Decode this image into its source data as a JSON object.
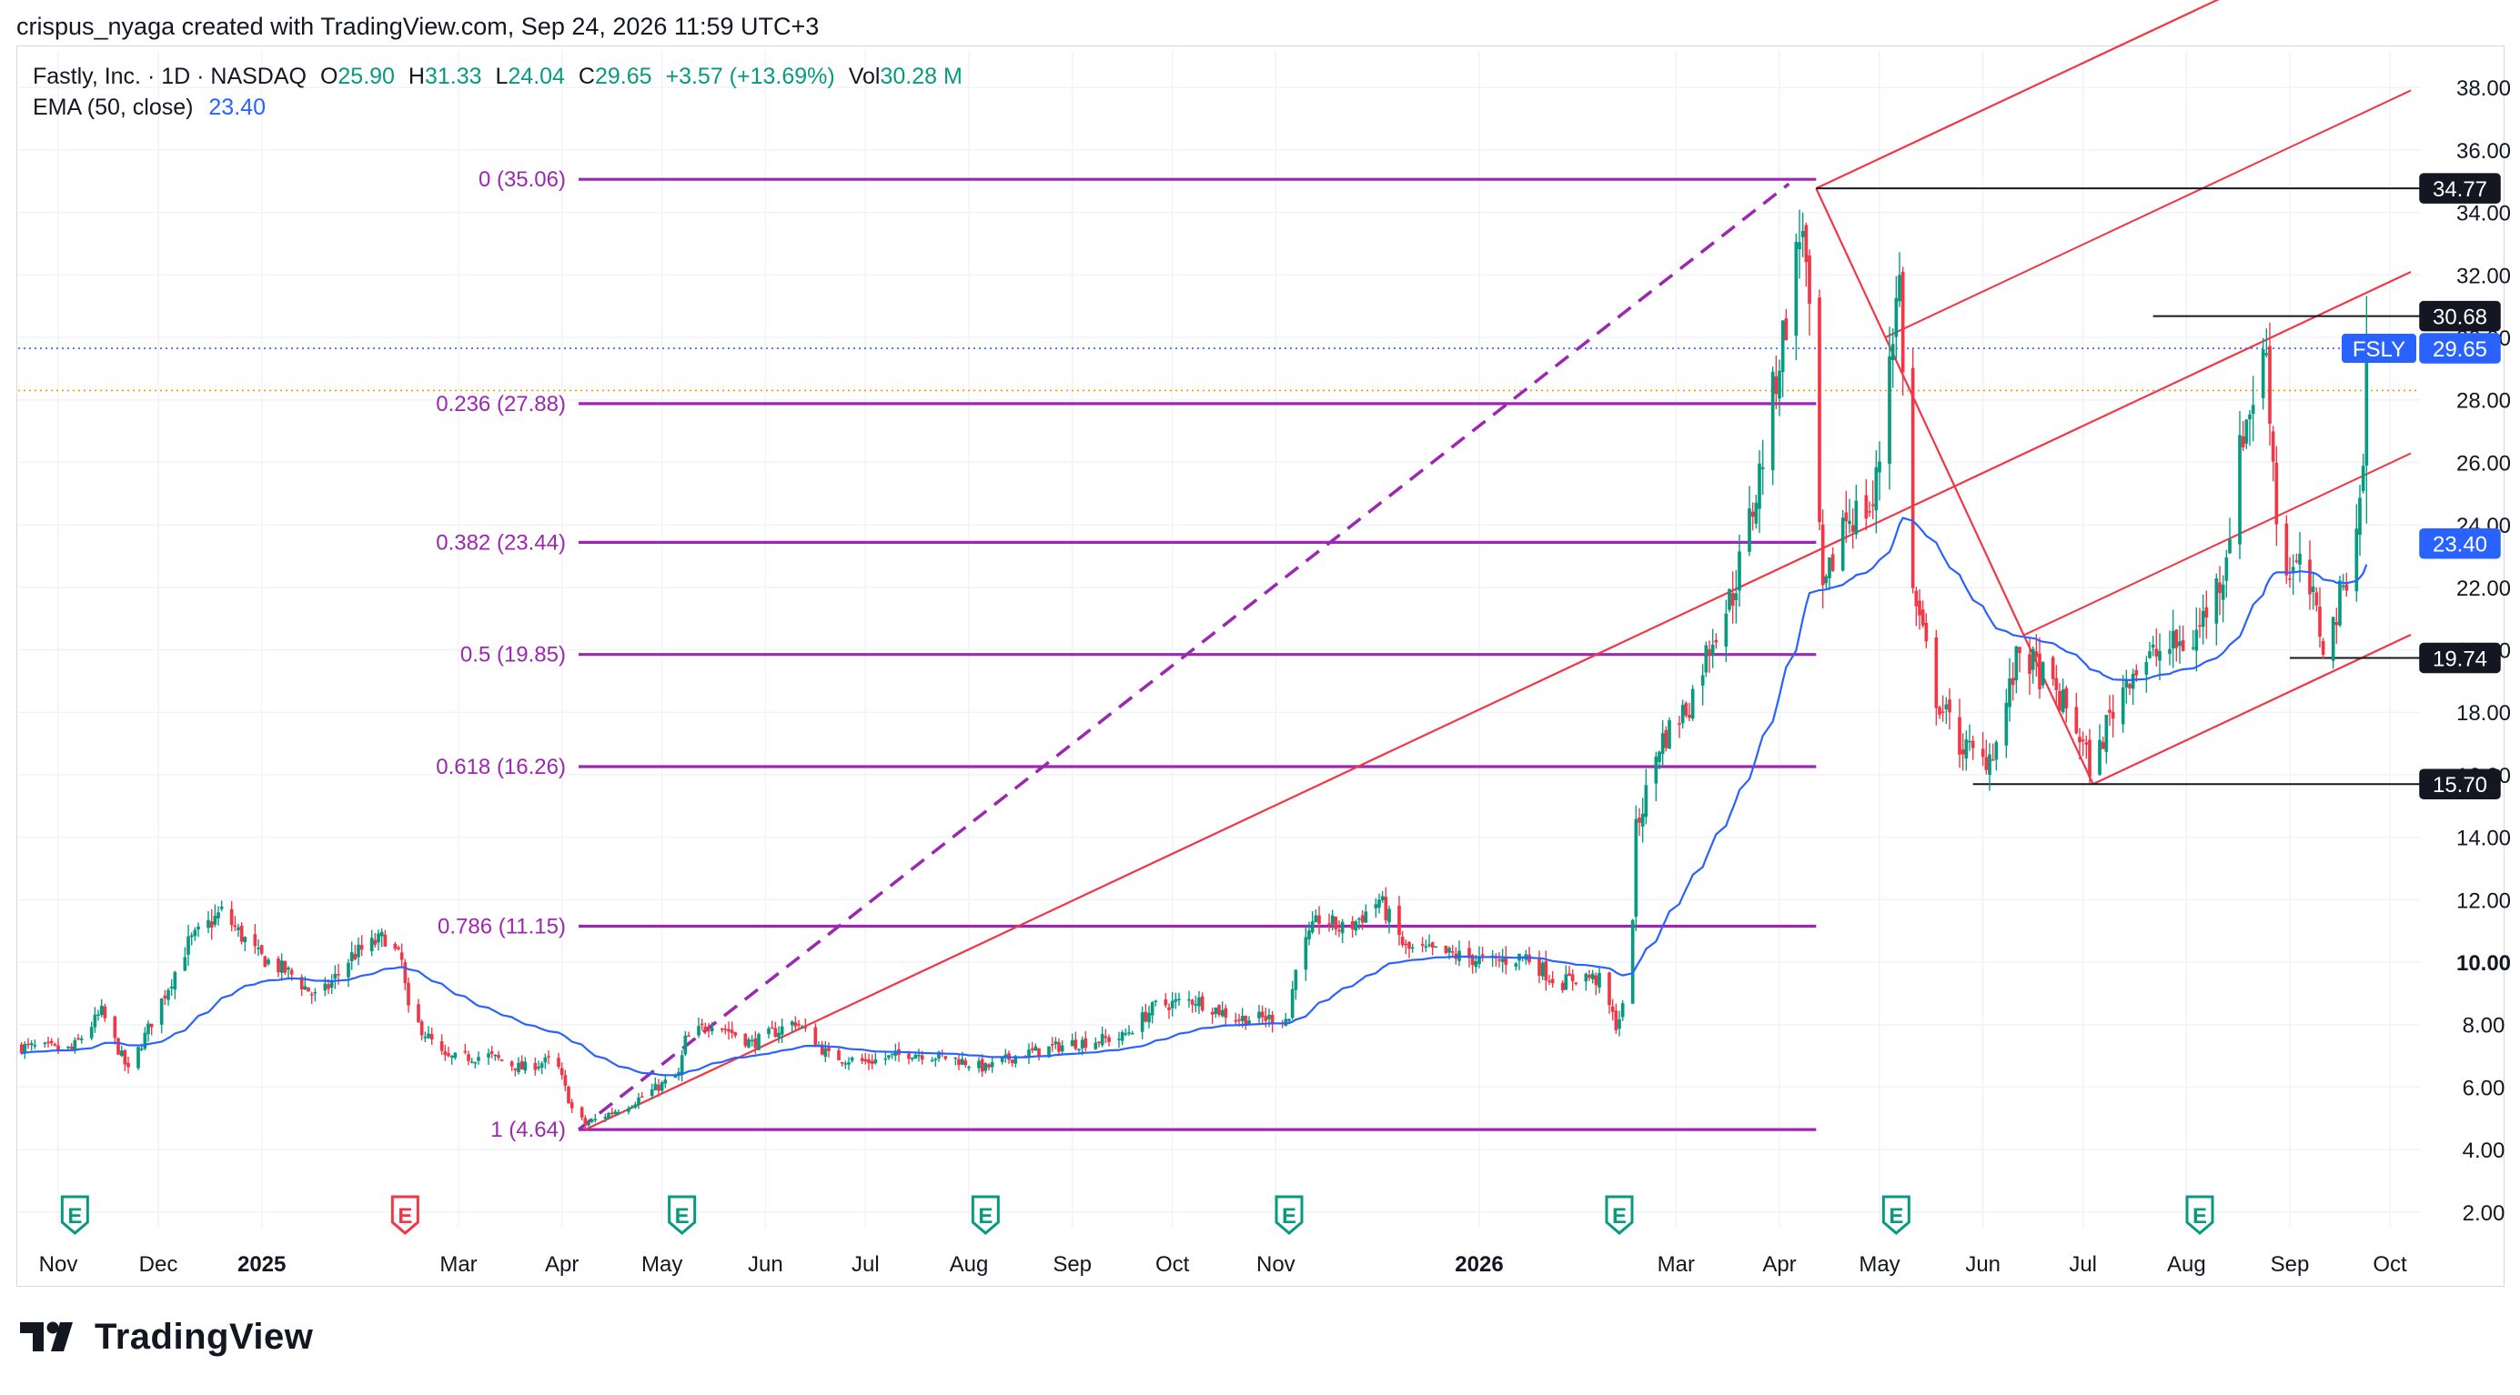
{
  "header": {
    "attribution": "crispus_nyaga created with TradingView.com, Sep 24, 2026 11:59 UTC+3"
  },
  "legend": {
    "symbol": "Fastly, Inc. · 1D · NASDAQ",
    "o_label": "O",
    "o_value": "25.90",
    "h_label": "H",
    "h_value": "31.33",
    "l_label": "L",
    "l_value": "24.04",
    "c_label": "C",
    "c_value": "29.65",
    "change": "+3.57 (+13.69%)",
    "vol_label": "Vol",
    "vol_value": "30.28 M",
    "ema_label": "EMA (50, close)",
    "ema_value": "23.40"
  },
  "brand": {
    "name": "TradingView"
  },
  "colors": {
    "up": "#089981",
    "down": "#f23645",
    "ema": "#2962ff",
    "fib": "#9c27b0",
    "fib_label": "#9c27b0",
    "pitchfork": "#f23645",
    "price_badge": "#2962ff",
    "grid": "#f0f3fa",
    "axis_text": "#131722"
  },
  "chart_data": {
    "type": "candlestick",
    "symbol": "FSLY",
    "ylim": [
      1.5,
      39.2
    ],
    "grid": true,
    "y_ticks": [
      "38.00",
      "36.00",
      "34.00",
      "32.00",
      "30.00",
      "28.00",
      "26.00",
      "24.00",
      "22.00",
      "20.00",
      "18.00",
      "16.00",
      "14.00",
      "12.00",
      "10.00",
      "8.00",
      "6.00",
      "4.00",
      "2.00"
    ],
    "x_labels": [
      "Nov",
      "Dec",
      "2025",
      "Mar",
      "Apr",
      "May",
      "Jun",
      "Jul",
      "Aug",
      "Sep",
      "Oct",
      "Nov",
      "2026",
      "Mar",
      "Apr",
      "May",
      "Jun",
      "Jul",
      "Aug",
      "Sep",
      "Oct"
    ],
    "earnings_markers": [
      {
        "label": "E",
        "type": "report"
      },
      {
        "label": "E",
        "type": "miss"
      },
      {
        "label": "E",
        "type": "report"
      },
      {
        "label": "E",
        "type": "report"
      },
      {
        "label": "E",
        "type": "report"
      },
      {
        "label": "E",
        "type": "report"
      },
      {
        "label": "E",
        "type": "report"
      },
      {
        "label": "E",
        "type": "report"
      }
    ],
    "price_anchors": [
      [
        "2024-10-20",
        7.3
      ],
      [
        "2024-11-05",
        7.2
      ],
      [
        "2024-11-14",
        8.4
      ],
      [
        "2024-11-22",
        6.5
      ],
      [
        "2024-12-03",
        9.0
      ],
      [
        "2024-12-10",
        10.6
      ],
      [
        "2024-12-20",
        11.6
      ],
      [
        "2024-12-31",
        10.2
      ],
      [
        "2025-01-10",
        9.6
      ],
      [
        "2025-01-18",
        8.8
      ],
      [
        "2025-01-28",
        10.2
      ],
      [
        "2025-02-07",
        10.8
      ],
      [
        "2025-02-12",
        10.0
      ],
      [
        "2025-02-14",
        8.4
      ],
      [
        "2025-02-25",
        6.9
      ],
      [
        "2025-03-10",
        7.0
      ],
      [
        "2025-03-20",
        6.6
      ],
      [
        "2025-03-30",
        6.9
      ],
      [
        "2025-04-04",
        5.3
      ],
      [
        "2025-04-08",
        4.8
      ],
      [
        "2025-04-22",
        5.5
      ],
      [
        "2025-05-06",
        6.4
      ],
      [
        "2025-05-08",
        7.5
      ],
      [
        "2025-05-16",
        8.1
      ],
      [
        "2025-05-28",
        7.4
      ],
      [
        "2025-06-10",
        8.1
      ],
      [
        "2025-06-20",
        7.0
      ],
      [
        "2025-07-01",
        6.8
      ],
      [
        "2025-07-15",
        7.1
      ],
      [
        "2025-07-28",
        6.9
      ],
      [
        "2025-08-06",
        6.6
      ],
      [
        "2025-08-15",
        7.0
      ],
      [
        "2025-09-01",
        7.4
      ],
      [
        "2025-09-16",
        7.6
      ],
      [
        "2025-09-26",
        8.6
      ],
      [
        "2025-10-08",
        8.8
      ],
      [
        "2025-10-20",
        8.2
      ],
      [
        "2025-11-05",
        8.2
      ],
      [
        "2025-11-07",
        10.0
      ],
      [
        "2025-11-14",
        11.4
      ],
      [
        "2025-11-22",
        11.0
      ],
      [
        "2025-12-02",
        12.0
      ],
      [
        "2025-12-10",
        10.4
      ],
      [
        "2025-12-20",
        10.3
      ],
      [
        "2026-01-05",
        10.0
      ],
      [
        "2026-01-15",
        10.2
      ],
      [
        "2026-01-25",
        9.3
      ],
      [
        "2026-02-01",
        9.6
      ],
      [
        "2026-02-06",
        9.4
      ],
      [
        "2026-02-11",
        8.0
      ],
      [
        "2026-02-15",
        9.0
      ],
      [
        "2026-02-17",
        14.2
      ],
      [
        "2026-02-24",
        17.0
      ],
      [
        "2026-03-05",
        18.3
      ],
      [
        "2026-03-12",
        20.5
      ],
      [
        "2026-03-18",
        21.8
      ],
      [
        "2026-03-25",
        25.0
      ],
      [
        "2026-04-01",
        29.4
      ],
      [
        "2026-04-06",
        32.5
      ],
      [
        "2026-04-08",
        33.8
      ],
      [
        "2026-04-11",
        28.5
      ],
      [
        "2026-04-14",
        21.5
      ],
      [
        "2026-04-20",
        24.2
      ],
      [
        "2026-04-29",
        24.6
      ],
      [
        "2026-05-02",
        27.0
      ],
      [
        "2026-05-04",
        29.6
      ],
      [
        "2026-05-07",
        31.8
      ],
      [
        "2026-05-11",
        21.8
      ],
      [
        "2026-05-18",
        18.5
      ],
      [
        "2026-05-25",
        17.0
      ],
      [
        "2026-06-01",
        16.4
      ],
      [
        "2026-06-05",
        17.0
      ],
      [
        "2026-06-12",
        20.0
      ],
      [
        "2026-06-20",
        19.0
      ],
      [
        "2026-06-28",
        17.8
      ],
      [
        "2026-07-04",
        16.0
      ],
      [
        "2026-07-08",
        17.6
      ],
      [
        "2026-07-15",
        19.3
      ],
      [
        "2026-07-25",
        20.0
      ],
      [
        "2026-08-03",
        20.3
      ],
      [
        "2026-08-12",
        22.5
      ],
      [
        "2026-08-18",
        27.0
      ],
      [
        "2026-08-25",
        29.6
      ],
      [
        "2026-08-29",
        22.5
      ],
      [
        "2026-09-05",
        22.6
      ],
      [
        "2026-09-12",
        19.9
      ],
      [
        "2026-09-18",
        22.5
      ],
      [
        "2026-09-22",
        24.7
      ],
      [
        "2026-09-23",
        26.1
      ],
      [
        "2026-09-24",
        29.65
      ]
    ],
    "last_candle": {
      "date": "2026-09-24",
      "open": 25.9,
      "high": 31.33,
      "low": 24.04,
      "close": 29.65
    },
    "ema": {
      "period": 50,
      "value": 23.4
    },
    "fibonacci": [
      {
        "label": "0 (35.06)",
        "level": 0,
        "price": 35.06
      },
      {
        "label": "0.236 (27.88)",
        "level": 0.236,
        "price": 27.88
      },
      {
        "label": "0.382 (23.44)",
        "level": 0.382,
        "price": 23.44
      },
      {
        "label": "0.5 (19.85)",
        "level": 0.5,
        "price": 19.85
      },
      {
        "label": "0.618 (16.26)",
        "level": 0.618,
        "price": 16.26
      },
      {
        "label": "0.786 (11.15)",
        "level": 0.786,
        "price": 11.15
      },
      {
        "label": "1 (4.64)",
        "level": 1,
        "price": 4.64
      }
    ],
    "fib_range": {
      "start_date": "2025-04-06",
      "end_date": "2026-04-12",
      "from_price": 4.64,
      "to_price": 35.06
    },
    "pitchfork": {
      "anchor_a": {
        "date": "2025-04-08",
        "price": 4.64
      },
      "anchor_b": {
        "date": "2026-04-12",
        "price": 34.77
      },
      "anchor_c": {
        "date": "2026-07-04",
        "price": 15.7
      }
    },
    "horizontal_levels": [
      {
        "price": 34.77,
        "label": "34.77",
        "start_date": "2026-04-12"
      },
      {
        "price": 30.68,
        "label": "30.68",
        "start_date": "2026-07-22"
      },
      {
        "price": 19.74,
        "label": "19.74",
        "start_date": "2026-09-01"
      },
      {
        "price": 15.7,
        "label": "15.70",
        "start_date": "2026-05-29"
      }
    ],
    "price_labels": {
      "symbol_badge": "FSLY",
      "last_price": "29.65",
      "ema_value": "23.40"
    },
    "reference_lines": [
      {
        "price": 29.65,
        "style": "dotted",
        "color": "#2962ff"
      },
      {
        "price": 28.3,
        "style": "dotted",
        "color": "#ff9800"
      }
    ]
  }
}
